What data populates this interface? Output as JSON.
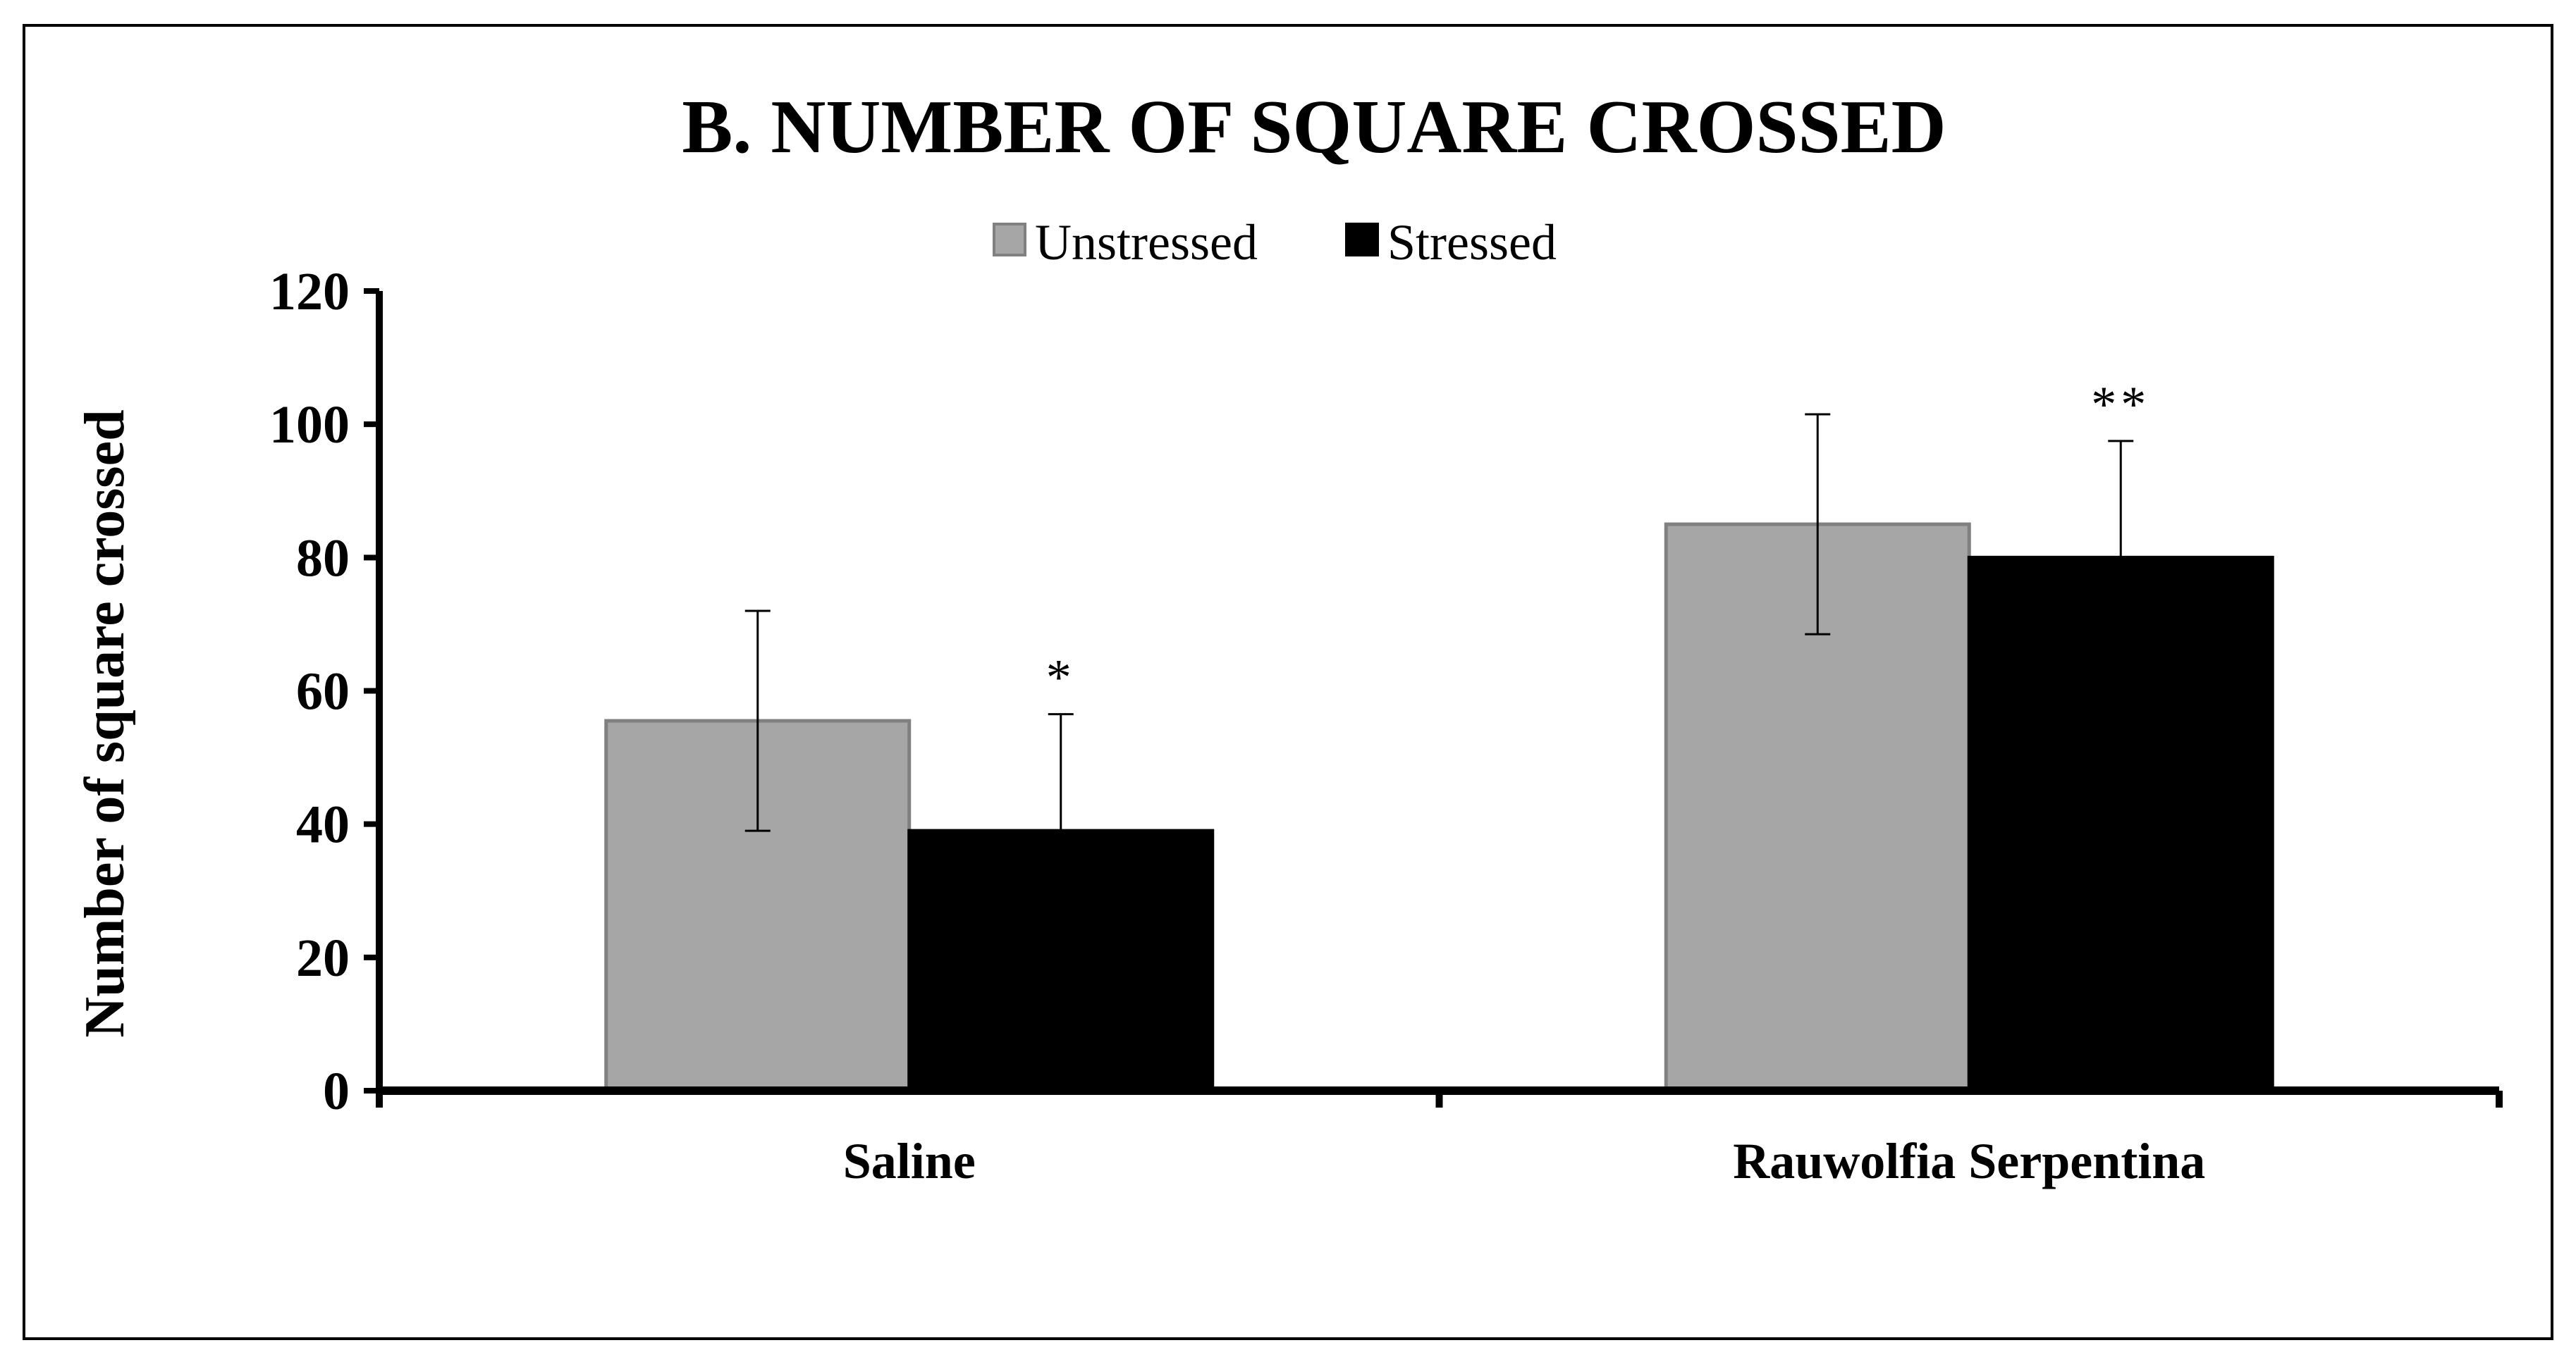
{
  "chart_data": {
    "type": "bar",
    "title": "B. NUMBER OF SQUARE CROSSED",
    "xlabel": "",
    "ylabel": "Number of square crossed",
    "categories": [
      "Saline",
      "Rauwolfia Serpentina"
    ],
    "series": [
      {
        "name": "Unstressed",
        "color": "#a6a6a6",
        "values": [
          55.5,
          85
        ],
        "error": [
          16.5,
          16.5
        ],
        "annotations": [
          "",
          ""
        ]
      },
      {
        "name": "Stressed",
        "color": "#000000",
        "values": [
          39,
          80
        ],
        "error": [
          17.5,
          17.5
        ],
        "annotations": [
          "*",
          "**"
        ]
      }
    ],
    "ylim": [
      0,
      120
    ],
    "yticks": [
      0,
      20,
      40,
      60,
      80,
      100,
      120
    ],
    "grid": false,
    "legend_position": "top-center"
  }
}
